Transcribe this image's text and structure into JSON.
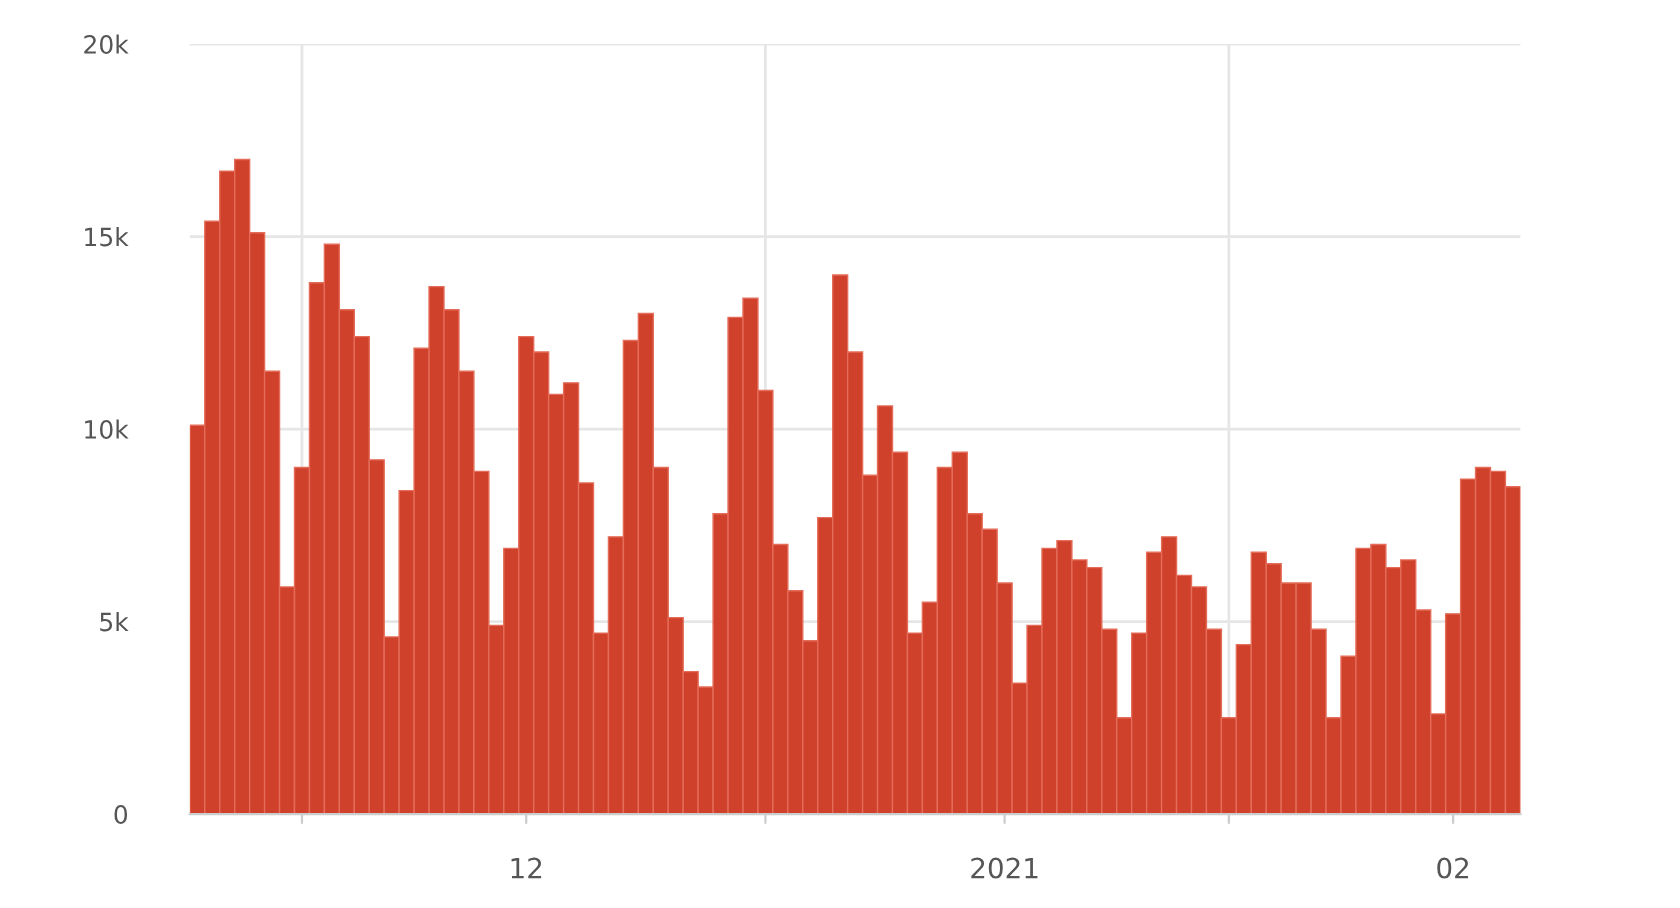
{
  "chart_data": {
    "type": "bar",
    "color": "#d0412b",
    "x": [
      "2020-11-24",
      "2020-11-25",
      "2020-11-26",
      "2020-11-27",
      "2020-11-28",
      "2020-11-29",
      "2020-11-30",
      "2020-12-01",
      "2020-12-02",
      "2020-12-03",
      "2020-12-04",
      "2020-12-05",
      "2020-12-06",
      "2020-12-07",
      "2020-12-08",
      "2020-12-09",
      "2020-12-10",
      "2020-12-11",
      "2020-12-12",
      "2020-12-13",
      "2020-12-14",
      "2020-12-15",
      "2020-12-16",
      "2020-12-17",
      "2020-12-18",
      "2020-12-19",
      "2020-12-20",
      "2020-12-21",
      "2020-12-22",
      "2020-12-23",
      "2020-12-24",
      "2020-12-25",
      "2020-12-26",
      "2020-12-27",
      "2020-12-28",
      "2020-12-29",
      "2020-12-30",
      "2020-12-31",
      "2021-01-01",
      "2021-01-02",
      "2021-01-03",
      "2021-01-04",
      "2021-01-05",
      "2021-01-06",
      "2021-01-07",
      "2021-01-08",
      "2021-01-09",
      "2021-01-10",
      "2021-01-11",
      "2021-01-12",
      "2021-01-13",
      "2021-01-14",
      "2021-01-15",
      "2021-01-16",
      "2021-01-17",
      "2021-01-18",
      "2021-01-19",
      "2021-01-20",
      "2021-01-21",
      "2021-01-22",
      "2021-01-23",
      "2021-01-24",
      "2021-01-25",
      "2021-01-26",
      "2021-01-27",
      "2021-01-28",
      "2021-01-29",
      "2021-01-30",
      "2021-01-31",
      "2021-02-01",
      "2021-02-02",
      "2021-02-03",
      "2021-02-04",
      "2021-02-05",
      "2021-02-06",
      "2021-02-07",
      "2021-02-08",
      "2021-02-09",
      "2021-02-10",
      "2021-02-11",
      "2021-02-12",
      "2021-02-13",
      "2021-02-14",
      "2021-02-15",
      "2021-02-16",
      "2021-02-17",
      "2021-02-18",
      "2021-02-19",
      "2021-02-20"
    ],
    "values": [
      10100,
      15400,
      16700,
      17000,
      15100,
      11500,
      5900,
      9000,
      13800,
      14800,
      13100,
      12400,
      9200,
      4600,
      8400,
      12100,
      13700,
      13100,
      11500,
      8900,
      4900,
      6900,
      12400,
      12000,
      10900,
      11200,
      8600,
      4700,
      7200,
      12300,
      13000,
      9000,
      5100,
      3700,
      3300,
      7800,
      12900,
      13400,
      11000,
      7000,
      5800,
      4500,
      7700,
      14000,
      12000,
      8800,
      10600,
      9400,
      4700,
      5500,
      9000,
      9400,
      7800,
      7400,
      6000,
      3400,
      4900,
      6900,
      7100,
      6600,
      6400,
      4800,
      2500,
      4700,
      6800,
      7200,
      6200,
      5900,
      4800,
      2500,
      4400,
      6800,
      6500,
      6000,
      6000,
      4800,
      2500,
      4100,
      6900,
      7000,
      6400,
      6600,
      5300,
      2600,
      5200,
      8700,
      9000,
      8900,
      8500
    ],
    "xlim": [
      "2020-11-23T12:00",
      "2021-02-20T12:00"
    ],
    "xticks": [
      {
        "value": "2020-12-01",
        "label": null
      },
      {
        "value": "2020-12-16",
        "label": "12"
      },
      {
        "value": "2021-01-01",
        "label": null
      },
      {
        "value": "2021-01-17",
        "label": "2021"
      },
      {
        "value": "2021-02-01",
        "label": null
      },
      {
        "value": "2021-02-16",
        "label": "02"
      }
    ],
    "ylim": [
      0,
      20000
    ],
    "yticks": [
      0,
      {
        "value": 5000,
        "label": "5k"
      },
      {
        "value": 10000,
        "label": "10k"
      },
      {
        "value": 15000,
        "label": "15k"
      },
      {
        "value": 20000,
        "label": "20k"
      }
    ],
    "grid": true
  }
}
